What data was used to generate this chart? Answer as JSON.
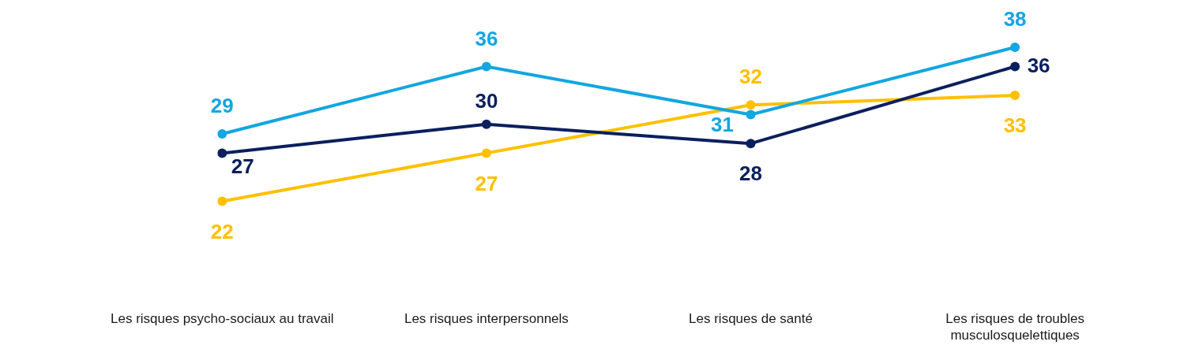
{
  "chart_data": {
    "type": "line",
    "categories": [
      "Les risques psycho-sociaux au travail",
      "Les risques interpersonnels",
      "Les risques de santé",
      "Les risques de troubles musculosquelettiques"
    ],
    "series": [
      {
        "color": "#13a6e0",
        "values": [
          29,
          36,
          31,
          38
        ]
      },
      {
        "color": "#0b1f5e",
        "values": [
          27,
          30,
          28,
          36
        ]
      },
      {
        "color": "#ffc000",
        "values": [
          22,
          27,
          32,
          33
        ]
      }
    ],
    "data_labels": true,
    "grid": false,
    "legend": false,
    "marker": "circle",
    "line_style": "solid"
  }
}
